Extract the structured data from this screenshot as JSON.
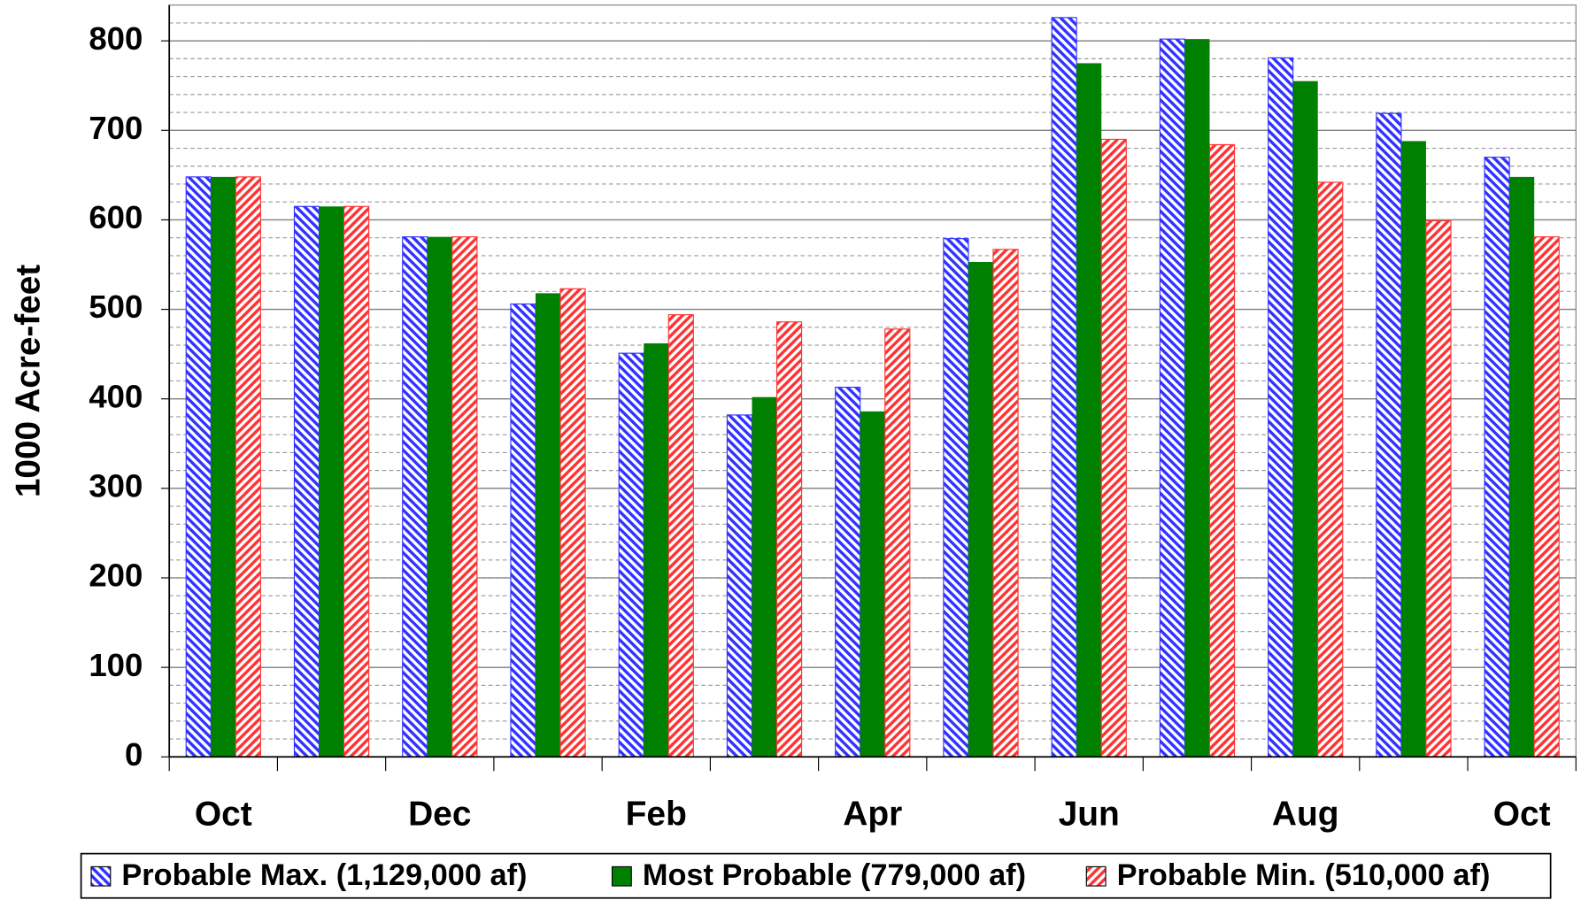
{
  "chart_data": {
    "type": "bar",
    "y_label": "1000 Acre-feet",
    "categories": [
      "Oct",
      null,
      "Dec",
      null,
      "Feb",
      null,
      "Apr",
      null,
      "Jun",
      null,
      "Aug",
      null,
      "Oct"
    ],
    "series": [
      {
        "name": "Probable Max. (1,129,000 af)",
        "color": "#3333ff",
        "hatch": true,
        "values": [
          648,
          615,
          581,
          506,
          451,
          382,
          413,
          579,
          826,
          802,
          781,
          719,
          670
        ]
      },
      {
        "name": "Most Probable (779,000 af)",
        "color": "#008000",
        "hatch": false,
        "values": [
          648,
          615,
          581,
          518,
          462,
          402,
          386,
          553,
          775,
          802,
          755,
          688,
          648
        ]
      },
      {
        "name": "Probable Min. (510,000 af)",
        "color": "#ff3333",
        "hatch": true,
        "values": [
          648,
          615,
          581,
          523,
          494,
          486,
          478,
          567,
          690,
          684,
          642,
          599,
          581
        ]
      }
    ],
    "ylim": [
      0,
      840
    ],
    "yticks": [
      0,
      100,
      200,
      300,
      400,
      500,
      600,
      700,
      800
    ],
    "minor_grid_step": 20,
    "grid": true,
    "legend": "bottom"
  }
}
